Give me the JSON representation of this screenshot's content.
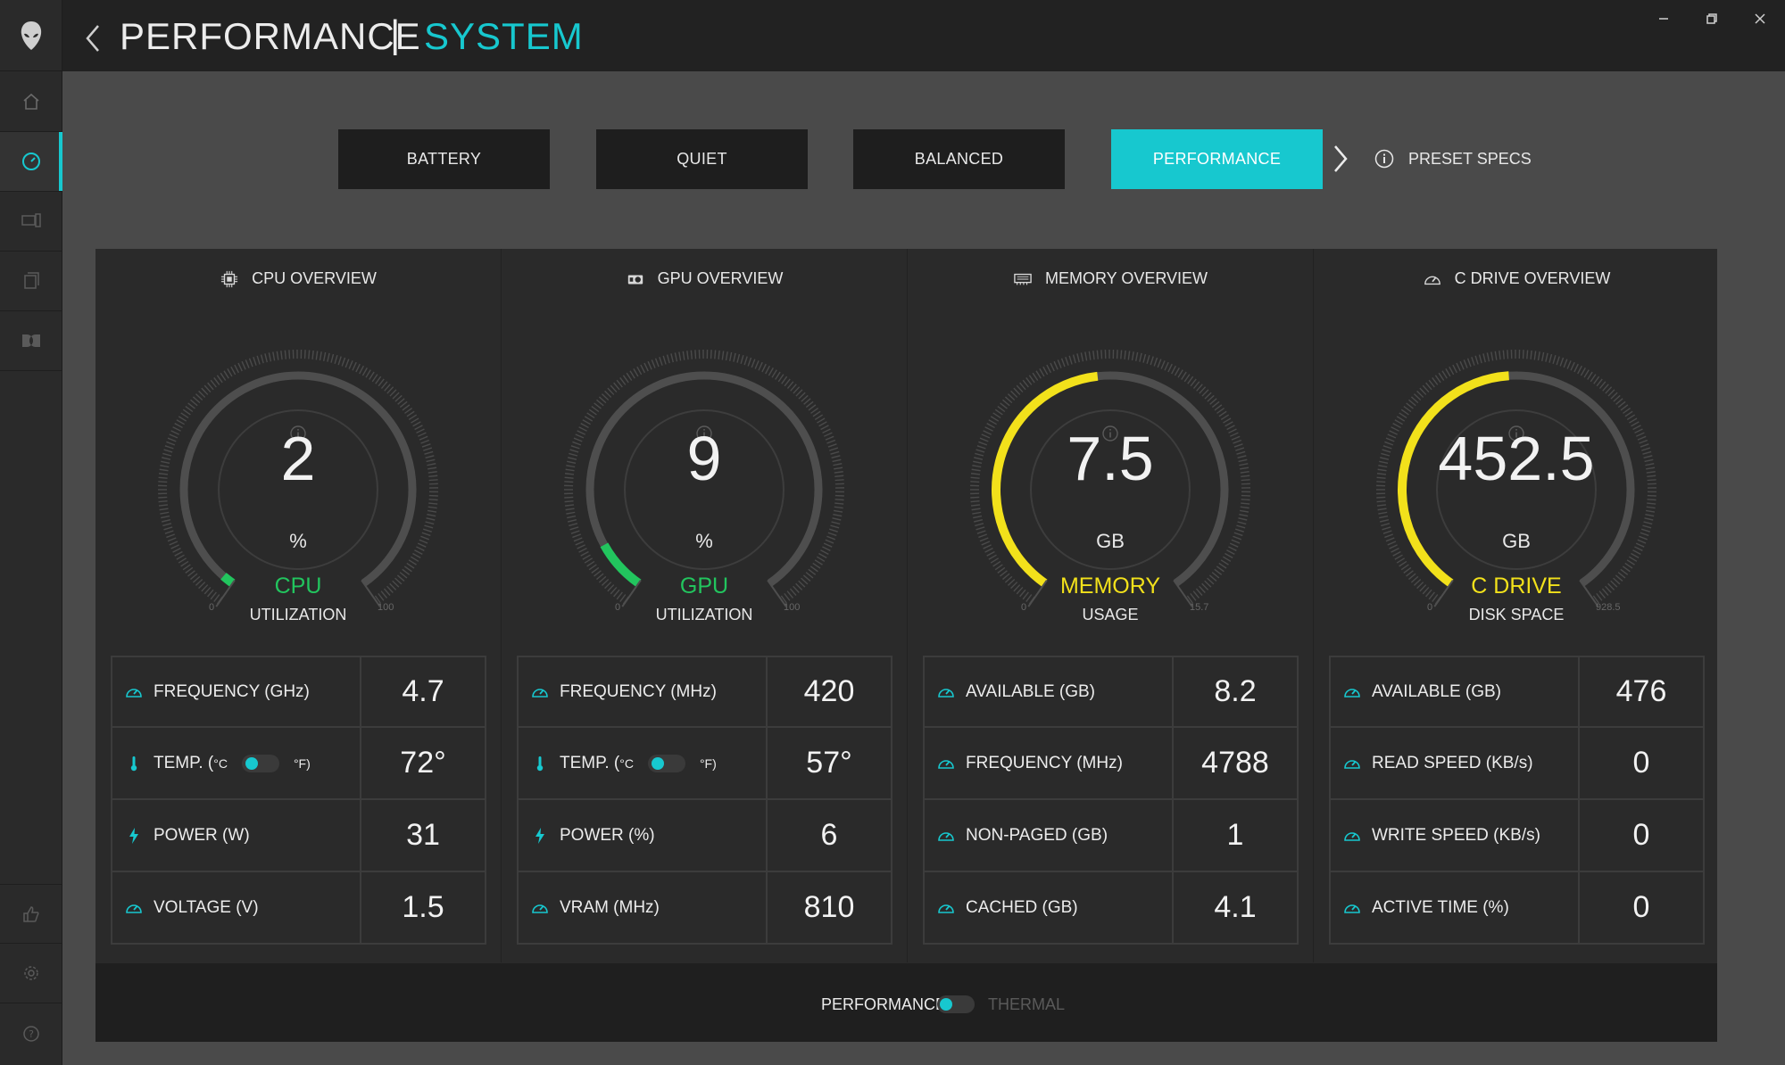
{
  "header": {
    "title": "PERFORMANCE",
    "separator": "|",
    "subtitle": "SYSTEM"
  },
  "sidebar": {
    "items": [
      {
        "icon": "home-icon"
      },
      {
        "icon": "speedometer-icon",
        "active": true
      },
      {
        "icon": "device-icon"
      },
      {
        "icon": "library-icon"
      },
      {
        "icon": "dolby-icon"
      },
      {
        "icon": "thumbs-up-icon"
      },
      {
        "icon": "gear-icon"
      },
      {
        "icon": "help-icon"
      }
    ]
  },
  "presets": {
    "items": [
      "BATTERY",
      "QUIET",
      "BALANCED",
      "PERFORMANCE"
    ],
    "active": "PERFORMANCE",
    "specs_label": "PRESET SPECS"
  },
  "colors": {
    "accent": "#17c8cf",
    "green": "#22c55e",
    "yellow": "#f2e11b"
  },
  "columns": [
    {
      "header": "CPU OVERVIEW",
      "icon": "cpu-icon",
      "gauge": {
        "value": "2",
        "unit": "%",
        "name": "CPU",
        "sub": "UTILIZATION",
        "min": "0",
        "max": "100",
        "fraction": 0.02,
        "color": "#22c55e"
      },
      "rows": [
        {
          "label": "FREQUENCY (GHz)",
          "value": "4.7",
          "icon": "gauge-icon"
        },
        {
          "label": "TEMP. (",
          "unit_c": "°C",
          "unit_f": "°F)",
          "value": "72°",
          "icon": "thermometer-icon",
          "toggle": true
        },
        {
          "label": "POWER (W)",
          "value": "31",
          "icon": "lightning-icon"
        },
        {
          "label": "VOLTAGE (V)",
          "value": "1.5",
          "icon": "gauge-icon"
        }
      ]
    },
    {
      "header": "GPU OVERVIEW",
      "icon": "gpu-icon",
      "gauge": {
        "value": "9",
        "unit": "%",
        "name": "GPU",
        "sub": "UTILIZATION",
        "min": "0",
        "max": "100",
        "fraction": 0.09,
        "color": "#22c55e"
      },
      "rows": [
        {
          "label": "FREQUENCY (MHz)",
          "value": "420",
          "icon": "gauge-icon"
        },
        {
          "label": "TEMP. (",
          "unit_c": "°C",
          "unit_f": "°F)",
          "value": "57°",
          "icon": "thermometer-icon",
          "toggle": true
        },
        {
          "label": "POWER (%)",
          "value": "6",
          "icon": "lightning-icon"
        },
        {
          "label": "VRAM (MHz)",
          "value": "810",
          "icon": "gauge-icon"
        }
      ]
    },
    {
      "header": "MEMORY OVERVIEW",
      "icon": "memory-icon",
      "gauge": {
        "value": "7.5",
        "unit": "GB",
        "name": "MEMORY",
        "sub": "USAGE",
        "min": "0",
        "max": "15.7",
        "fraction": 0.478,
        "color": "#f2e11b"
      },
      "rows": [
        {
          "label": "AVAILABLE (GB)",
          "value": "8.2",
          "icon": "gauge-icon"
        },
        {
          "label": "FREQUENCY (MHz)",
          "value": "4788",
          "icon": "gauge-icon"
        },
        {
          "label": "NON-PAGED (GB)",
          "value": "1",
          "icon": "gauge-icon"
        },
        {
          "label": "CACHED (GB)",
          "value": "4.1",
          "icon": "gauge-icon"
        }
      ]
    },
    {
      "header": "C DRIVE OVERVIEW",
      "icon": "drive-icon",
      "gauge": {
        "value": "452.5",
        "unit": "GB",
        "name": "C DRIVE",
        "sub": "DISK SPACE",
        "min": "0",
        "max": "928.5",
        "fraction": 0.487,
        "color": "#f2e11b"
      },
      "rows": [
        {
          "label": "AVAILABLE (GB)",
          "value": "476",
          "icon": "gauge-icon"
        },
        {
          "label": "READ SPEED (KB/s)",
          "value": "0",
          "icon": "gauge-icon"
        },
        {
          "label": "WRITE SPEED (KB/s)",
          "value": "0",
          "icon": "gauge-icon"
        },
        {
          "label": "ACTIVE TIME (%)",
          "value": "0",
          "icon": "gauge-icon"
        }
      ]
    }
  ],
  "footer": {
    "left": "PERFORMANCE",
    "right": "THERMAL"
  }
}
